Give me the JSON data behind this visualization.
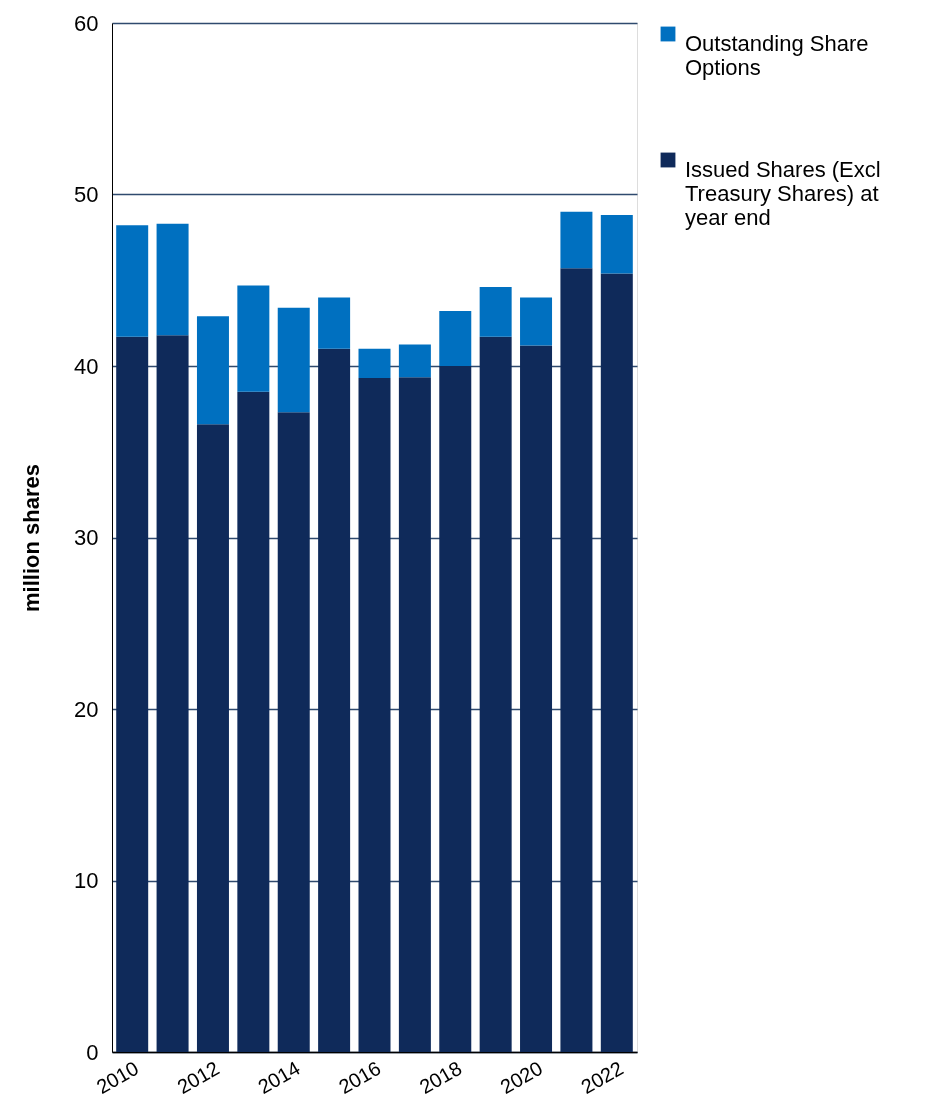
{
  "chart_data": {
    "type": "bar",
    "stacked": true,
    "ylabel": "million shares",
    "categories": [
      "2010",
      null,
      "2012",
      null,
      "2014",
      null,
      "2016",
      null,
      "2018",
      null,
      "2020",
      null,
      "2022"
    ],
    "series": [
      {
        "name": "Issued Shares (Excl Treasury Shares) at year end",
        "color": "#0f2a5a",
        "values": [
          41.7,
          41.8,
          36.6,
          38.5,
          37.3,
          41.0,
          39.3,
          39.35,
          40.0,
          41.7,
          41.2,
          45.7,
          45.4
        ]
      },
      {
        "name": "Outstanding Share Options",
        "color": "#0070c0",
        "values": [
          6.5,
          6.5,
          6.3,
          6.2,
          6.1,
          3.0,
          1.7,
          1.9,
          3.2,
          2.9,
          2.8,
          3.3,
          3.4
        ]
      }
    ],
    "ylim": [
      0,
      60
    ],
    "yticks": [
      0,
      10,
      20,
      30,
      40,
      50,
      60
    ],
    "grid": "y",
    "legend": "right"
  }
}
